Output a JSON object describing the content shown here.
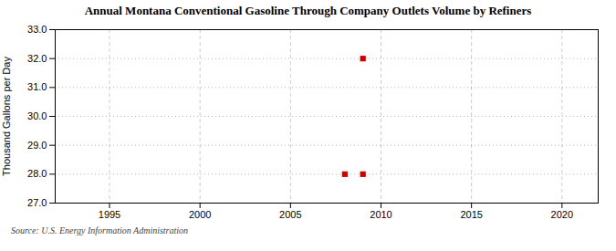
{
  "chart_data": {
    "type": "scatter",
    "title": "Annual Montana Conventional Gasoline Through Company Outlets Volume by Refiners",
    "ylabel": "Thousand Gallons per Day",
    "source": "Source: U.S. Energy Information Administration",
    "x": [
      2008,
      2009,
      2009
    ],
    "values": [
      28.0,
      32.0,
      28.0
    ],
    "color": "#cc0000",
    "marker": "square",
    "xlim": [
      1992,
      2022
    ],
    "xticks": [
      1995,
      2000,
      2005,
      2010,
      2015,
      2020
    ],
    "ylim": [
      27.0,
      33.0
    ],
    "yticks": [
      {
        "value": 27,
        "label": "27.0"
      },
      {
        "value": 28,
        "label": "28.0"
      },
      {
        "value": 29,
        "label": "29.0"
      },
      {
        "value": 30,
        "label": "30.0"
      },
      {
        "value": 31,
        "label": "31.0"
      },
      {
        "value": 32,
        "label": "32.0"
      },
      {
        "value": 33,
        "label": "33.0"
      }
    ],
    "grid": true
  }
}
